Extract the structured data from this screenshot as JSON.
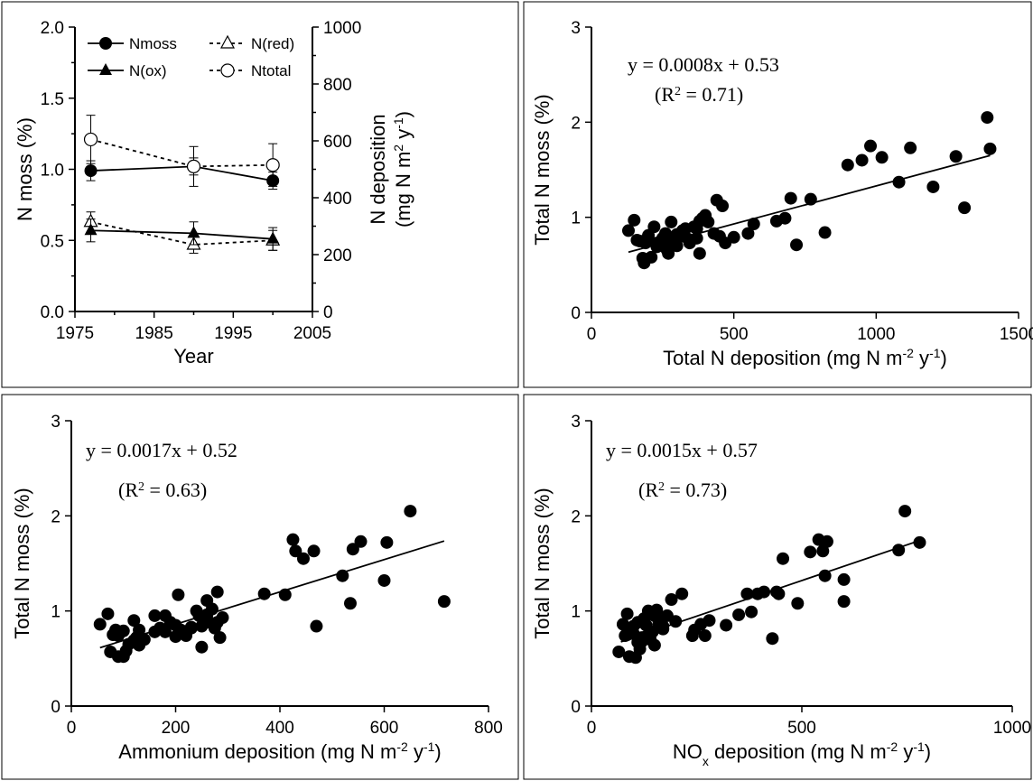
{
  "chart_data": [
    {
      "type": "line",
      "xlabel": "Year",
      "ylabel_left": "N moss (%)",
      "ylabel_right_line1": "N deposition",
      "ylabel_right_line2": "(mg N m",
      "ylabel_right_sup1": "2",
      "ylabel_right_mid": " y",
      "ylabel_right_sup2": "-1",
      "ylabel_right_end": ")",
      "xlim": [
        1975,
        2005
      ],
      "xticks": [
        "1975",
        "1985",
        "1995",
        "2005"
      ],
      "ylim_left": [
        0.0,
        2.0
      ],
      "yticks_left": [
        "0.0",
        "0.5",
        "1.0",
        "1.5",
        "2.0"
      ],
      "ylim_right": [
        0,
        1000
      ],
      "yticks_right": [
        "0",
        "200",
        "400",
        "600",
        "800",
        "1000"
      ],
      "legend_position": "top",
      "series": [
        {
          "name": "Nmoss",
          "axis": "left",
          "marker": "filled-circle",
          "line": "solid",
          "x": [
            1977,
            1990,
            2000
          ],
          "y": [
            0.99,
            1.02,
            0.92
          ],
          "err": [
            0.07,
            0.06,
            0.06
          ]
        },
        {
          "name": "N(red)",
          "axis": "right",
          "marker": "open-triangle",
          "line": "dashed",
          "x": [
            1977,
            1990,
            2000
          ],
          "y": [
            315,
            235,
            250
          ],
          "err": [
            35,
            30,
            35
          ]
        },
        {
          "name": "N(ox)",
          "axis": "right",
          "marker": "filled-triangle",
          "line": "solid",
          "x": [
            1977,
            1990,
            2000
          ],
          "y": [
            285,
            275,
            255
          ],
          "err": [
            40,
            40,
            40
          ]
        },
        {
          "name": "Ntotal",
          "axis": "right",
          "marker": "open-circle",
          "line": "dashed",
          "x": [
            1977,
            1990,
            2000
          ],
          "y": [
            605,
            510,
            515
          ],
          "err": [
            85,
            70,
            75
          ]
        }
      ]
    },
    {
      "type": "scatter",
      "xlabel": "Total N deposition (mg N m",
      "xlabel_sup1": "-2",
      "xlabel_mid": " y",
      "xlabel_sup2": "-1",
      "xlabel_end": ")",
      "ylabel": "Total N moss (%)",
      "xlim": [
        0,
        1500
      ],
      "xticks": [
        "0",
        "500",
        "1000",
        "1500"
      ],
      "ylim": [
        0,
        3
      ],
      "yticks": [
        "0",
        "1",
        "2",
        "3"
      ],
      "equation": "y = 0.0008x + 0.53",
      "r2_prefix": "(R",
      "r2_sup": "2",
      "r2_suffix": " = 0.71)",
      "fit": {
        "slope": 0.0008,
        "intercept": 0.53,
        "x_range": [
          130,
          1400
        ]
      },
      "x": [
        130,
        150,
        170,
        185,
        200,
        210,
        220,
        235,
        250,
        265,
        280,
        290,
        300,
        315,
        330,
        345,
        360,
        370,
        380,
        390,
        400,
        410,
        440,
        450,
        460,
        470,
        500,
        550,
        570,
        650,
        680,
        700,
        720,
        770,
        820,
        900,
        950,
        980,
        1020,
        1080,
        1120,
        1200,
        1280,
        1310,
        1390,
        1400,
        160,
        190,
        230,
        260,
        300,
        340,
        380,
        230,
        180,
        370,
        430,
        270,
        320,
        280
      ],
      "y": [
        0.86,
        0.97,
        0.75,
        0.52,
        0.81,
        0.58,
        0.9,
        0.7,
        0.78,
        0.66,
        0.95,
        0.75,
        0.82,
        0.8,
        0.88,
        0.73,
        0.9,
        0.78,
        0.62,
        0.99,
        1.02,
        0.95,
        1.18,
        0.8,
        1.12,
        0.73,
        0.79,
        0.83,
        0.93,
        0.96,
        0.99,
        1.2,
        0.71,
        1.19,
        0.84,
        1.55,
        1.6,
        1.75,
        1.63,
        1.37,
        1.73,
        1.32,
        1.64,
        1.1,
        2.05,
        1.72,
        0.76,
        0.73,
        0.69,
        0.83,
        0.7,
        0.77,
        0.96,
        0.73,
        0.57,
        0.88,
        0.83,
        0.62,
        0.86,
        0.71
      ]
    },
    {
      "type": "scatter",
      "xlabel": "Ammonium deposition (mg N m",
      "xlabel_sup1": "-2",
      "xlabel_mid": " y",
      "xlabel_sup2": "-1",
      "xlabel_end": ")",
      "ylabel": "Total N moss (%)",
      "xlim": [
        0,
        800
      ],
      "xticks": [
        "0",
        "200",
        "400",
        "600",
        "800"
      ],
      "ylim": [
        0,
        3
      ],
      "yticks": [
        "0",
        "1",
        "2",
        "3"
      ],
      "equation": "y = 0.0017x + 0.52",
      "r2_prefix": "(R",
      "r2_sup": "2",
      "r2_suffix": " = 0.63)",
      "fit": {
        "slope": 0.0017,
        "intercept": 0.52,
        "x_range": [
          55,
          715
        ]
      },
      "x": [
        55,
        70,
        75,
        80,
        85,
        90,
        95,
        100,
        105,
        110,
        120,
        125,
        130,
        140,
        160,
        170,
        180,
        190,
        200,
        205,
        210,
        220,
        230,
        240,
        245,
        250,
        255,
        260,
        265,
        270,
        275,
        280,
        285,
        290,
        370,
        410,
        425,
        430,
        445,
        465,
        470,
        520,
        535,
        540,
        555,
        600,
        605,
        650,
        715,
        180,
        230,
        130,
        200,
        260,
        160,
        280,
        250,
        100,
        120,
        90
      ],
      "y": [
        0.86,
        0.97,
        0.57,
        0.75,
        0.8,
        0.52,
        0.78,
        0.52,
        0.58,
        0.65,
        0.9,
        0.72,
        0.8,
        0.7,
        0.95,
        0.82,
        0.95,
        0.88,
        0.85,
        1.17,
        0.8,
        0.74,
        0.83,
        1.0,
        0.95,
        0.62,
        0.9,
        1.11,
        0.88,
        1.02,
        0.82,
        1.2,
        0.72,
        0.93,
        1.18,
        1.17,
        1.75,
        1.63,
        1.55,
        1.63,
        0.84,
        1.37,
        1.08,
        1.65,
        1.73,
        1.32,
        1.72,
        2.05,
        1.1,
        0.78,
        0.82,
        0.64,
        0.73,
        0.96,
        0.78,
        0.88,
        0.84,
        0.79,
        0.69,
        0.74
      ]
    },
    {
      "type": "scatter",
      "xlabel": "NO",
      "xlabel_sub": "x",
      "xlabel_rest": " deposition (mg N m",
      "xlabel_sup1": "-2",
      "xlabel_mid": " y",
      "xlabel_sup2": "-1",
      "xlabel_end": ")",
      "ylabel": "Total N moss (%)",
      "xlim": [
        0,
        1000
      ],
      "xticks": [
        "0",
        "500",
        "1000"
      ],
      "ylim": [
        0,
        3
      ],
      "yticks": [
        "0",
        "1",
        "2",
        "3"
      ],
      "equation": "y = 0.0015x + 0.57",
      "r2_prefix": "(R",
      "r2_sup": "2",
      "r2_suffix": " = 0.73)",
      "fit": {
        "slope": 0.0015,
        "intercept": 0.57,
        "x_range": [
          70,
          790
        ]
      },
      "x": [
        65,
        75,
        80,
        85,
        90,
        95,
        100,
        105,
        110,
        115,
        120,
        125,
        130,
        135,
        140,
        145,
        150,
        155,
        160,
        170,
        180,
        190,
        200,
        215,
        240,
        245,
        260,
        270,
        280,
        320,
        350,
        370,
        380,
        395,
        410,
        430,
        440,
        445,
        455,
        490,
        520,
        540,
        550,
        555,
        560,
        600,
        600,
        730,
        745,
        780,
        100,
        140,
        110,
        160,
        130,
        85,
        120,
        150,
        95,
        170
      ],
      "y": [
        0.57,
        0.86,
        0.74,
        0.97,
        0.52,
        0.8,
        0.76,
        0.51,
        0.88,
        0.6,
        0.72,
        0.92,
        0.85,
        1.0,
        0.7,
        0.78,
        0.64,
        1.01,
        0.9,
        0.81,
        0.95,
        1.12,
        0.89,
        1.18,
        0.74,
        0.8,
        0.86,
        0.74,
        0.9,
        0.85,
        0.96,
        1.18,
        0.99,
        1.18,
        1.2,
        0.71,
        1.2,
        1.18,
        1.55,
        1.08,
        1.62,
        1.75,
        1.63,
        1.37,
        1.73,
        1.33,
        1.1,
        1.64,
        2.05,
        1.72,
        0.84,
        0.77,
        0.67,
        0.86,
        0.73,
        0.75,
        0.68,
        0.95,
        0.79,
        0.84
      ]
    }
  ]
}
